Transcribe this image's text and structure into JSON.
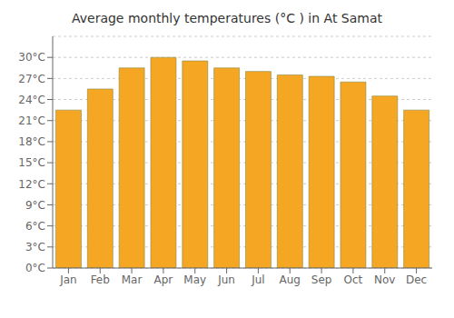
{
  "chart_data": {
    "type": "bar",
    "title": "Average monthly temperatures (°C ) in At Samat",
    "categories": [
      "Jan",
      "Feb",
      "Mar",
      "Apr",
      "May",
      "Jun",
      "Jul",
      "Aug",
      "Sep",
      "Oct",
      "Nov",
      "Dec"
    ],
    "values": [
      22.5,
      25.5,
      28.5,
      30.0,
      29.5,
      28.5,
      28.0,
      27.5,
      27.3,
      26.5,
      24.5,
      22.5
    ],
    "color": "#F5A623",
    "ylim": [
      0,
      33
    ],
    "yticks": [
      {
        "value": 0,
        "label": "0°C"
      },
      {
        "value": 3,
        "label": "3°C"
      },
      {
        "value": 6,
        "label": "6°C"
      },
      {
        "value": 9,
        "label": "9°C"
      },
      {
        "value": 12,
        "label": "12°C"
      },
      {
        "value": 15,
        "label": "15°C"
      },
      {
        "value": 18,
        "label": "18°C"
      },
      {
        "value": 21,
        "label": "21°C"
      },
      {
        "value": 24,
        "label": "24°C"
      },
      {
        "value": 27,
        "label": "27°C"
      },
      {
        "value": 30,
        "label": "30°C"
      }
    ],
    "grid": true
  }
}
